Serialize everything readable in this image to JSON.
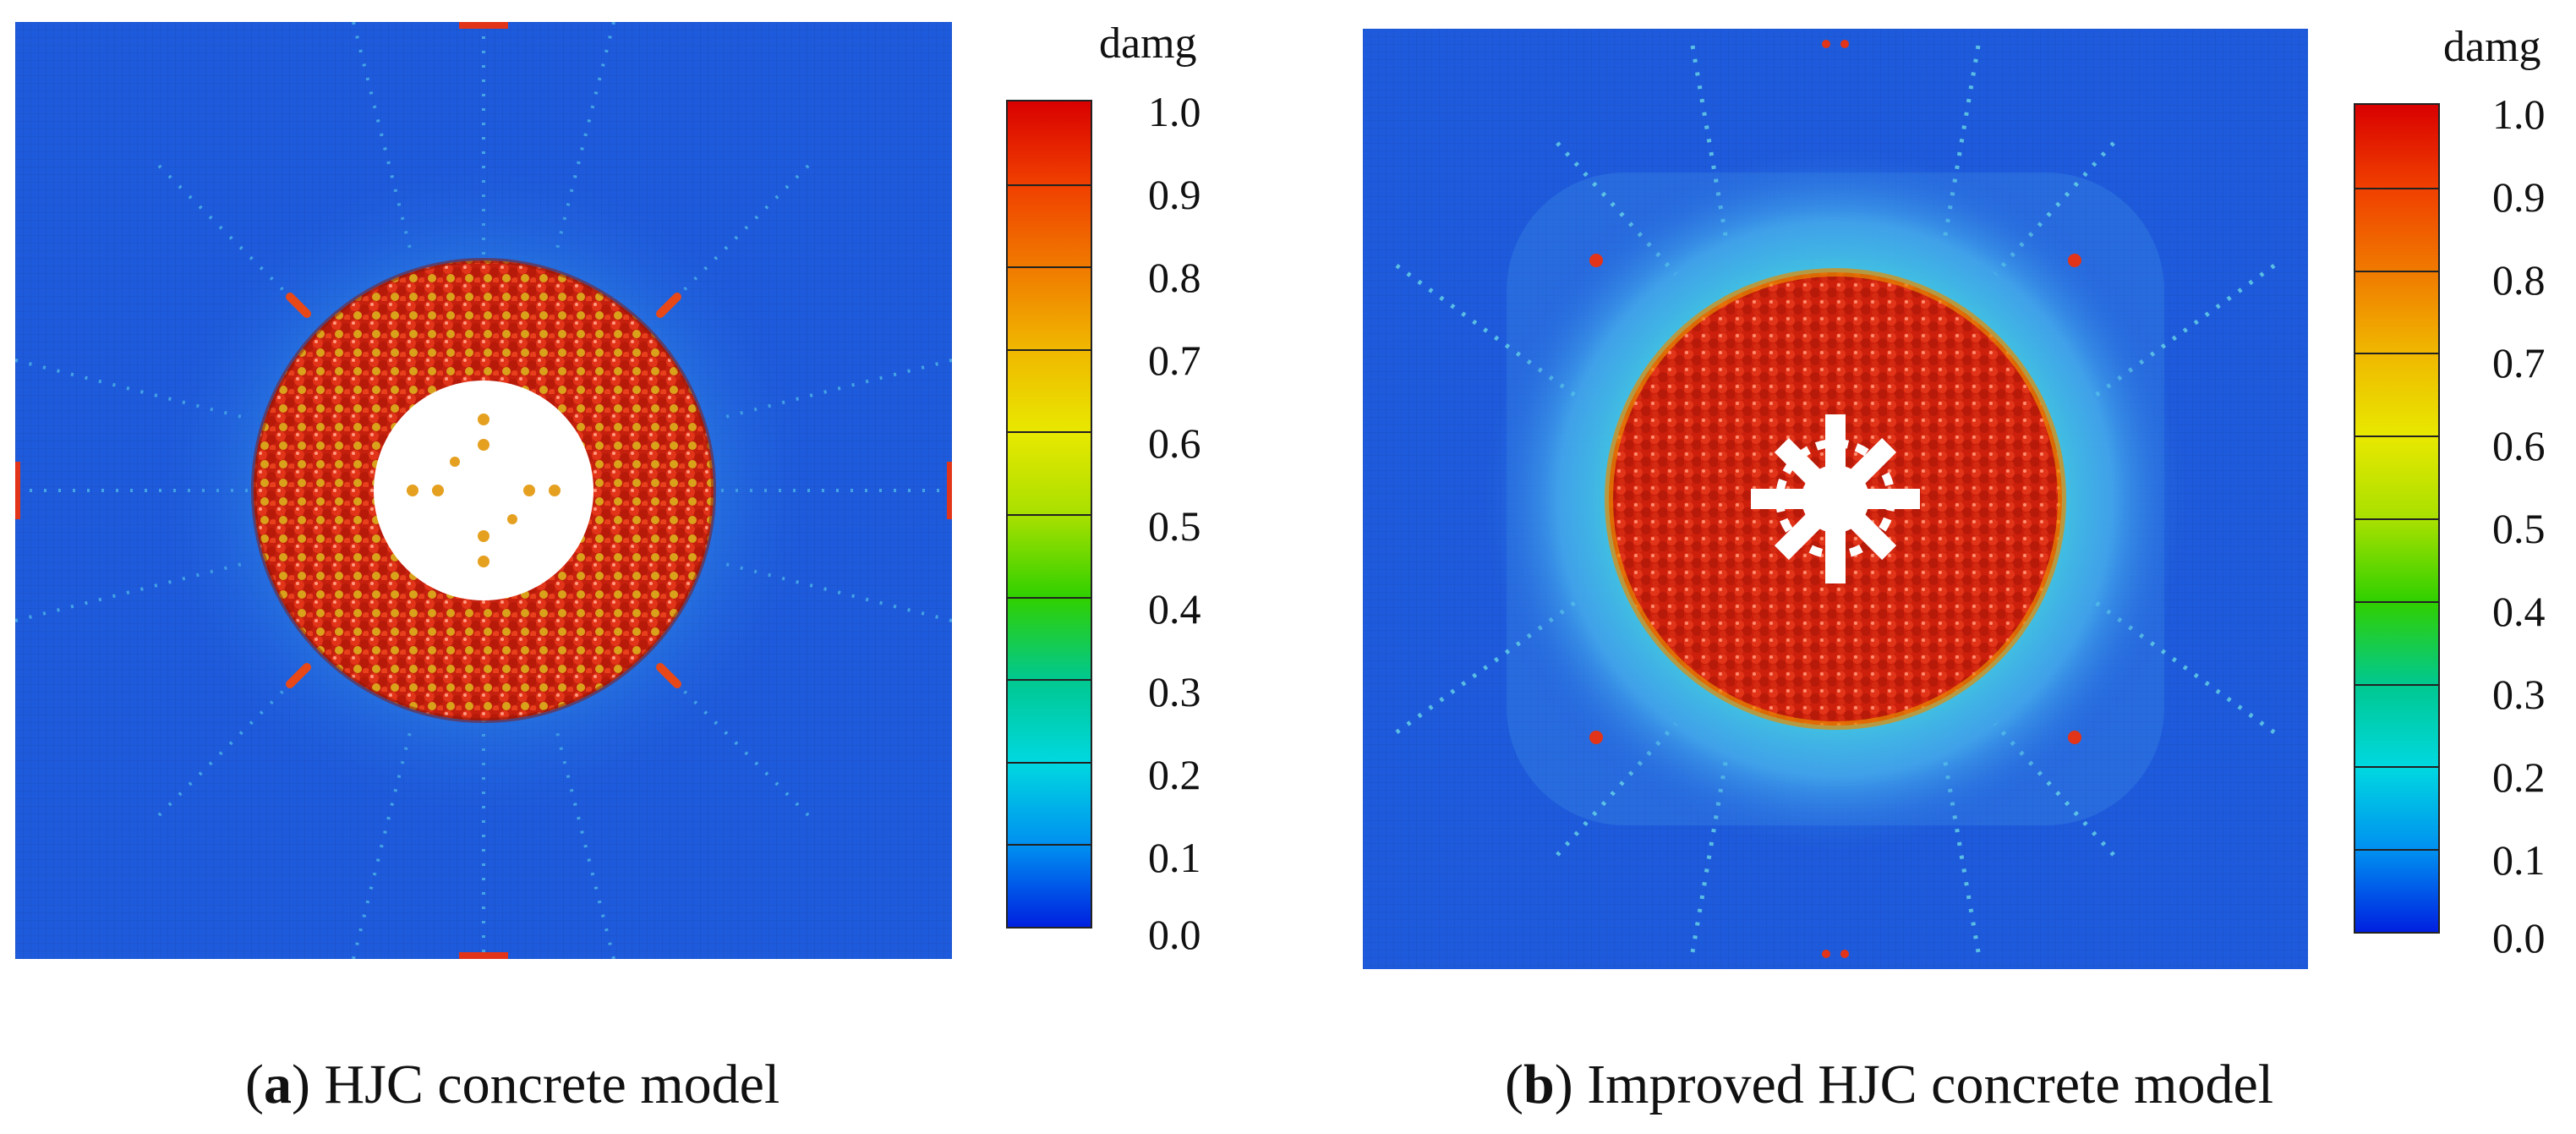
{
  "figure": {
    "panels": [
      {
        "id": "a",
        "caption_letter": "a",
        "caption_text": "HJC concrete model",
        "colorbar_title": "damg",
        "ticks": [
          "1.0",
          "0.9",
          "0.8",
          "0.7",
          "0.6",
          "0.5",
          "0.4",
          "0.3",
          "0.2",
          "0.1",
          "0.0"
        ]
      },
      {
        "id": "b",
        "caption_letter": "b",
        "caption_text": "Improved HJC concrete model",
        "colorbar_title": "damg",
        "ticks": [
          "1.0",
          "0.9",
          "0.8",
          "0.7",
          "0.6",
          "0.5",
          "0.4",
          "0.3",
          "0.2",
          "0.1",
          "0.0"
        ]
      }
    ],
    "colormap": [
      "#d90000",
      "#f04000",
      "#f07a00",
      "#f0b800",
      "#e8e800",
      "#a8e000",
      "#30d000",
      "#00c890",
      "#00d8e0",
      "#0090f0",
      "#0020e0"
    ],
    "colors": {
      "background_blue": "#1e5bdc",
      "damage_red": "#d4220f",
      "mid_cyan": "#39c6e6"
    }
  }
}
